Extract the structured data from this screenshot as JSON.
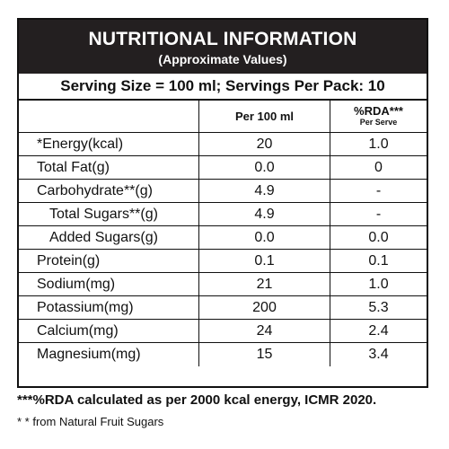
{
  "label": {
    "title": "NUTRITIONAL INFORMATION",
    "subtitle": "(Approximate Values)",
    "serving": "Serving Size = 100 ml; Servings Per Pack: 10",
    "headers": {
      "per": "Per 100 ml",
      "rda": "%RDA***",
      "rda_sub": "Per Serve"
    },
    "rows": [
      {
        "name": "*Energy(kcal)",
        "per": "20",
        "rda": "1.0"
      },
      {
        "name": "Total Fat(g)",
        "per": "0.0",
        "rda": "0"
      },
      {
        "name": "Carbohydrate**(g)",
        "per": "4.9",
        "rda": "-"
      },
      {
        "name": "Total Sugars**(g)",
        "per": "4.9",
        "rda": "-"
      },
      {
        "name": "Added Sugars(g)",
        "per": "0.0",
        "rda": "0.0"
      },
      {
        "name": "Protein(g)",
        "per": "0.1",
        "rda": "0.1"
      },
      {
        "name": "Sodium(mg)",
        "per": "21",
        "rda": "1.0"
      },
      {
        "name": "Potassium(mg)",
        "per": "200",
        "rda": "5.3"
      },
      {
        "name": "Calcium(mg)",
        "per": "24",
        "rda": "2.4"
      },
      {
        "name": "Magnesium(mg)",
        "per": "15",
        "rda": "3.4"
      }
    ],
    "footnotes": [
      "***%RDA calculated as per 2000 kcal energy, ICMR 2020.",
      "* * from Natural Fruit Sugars"
    ]
  }
}
